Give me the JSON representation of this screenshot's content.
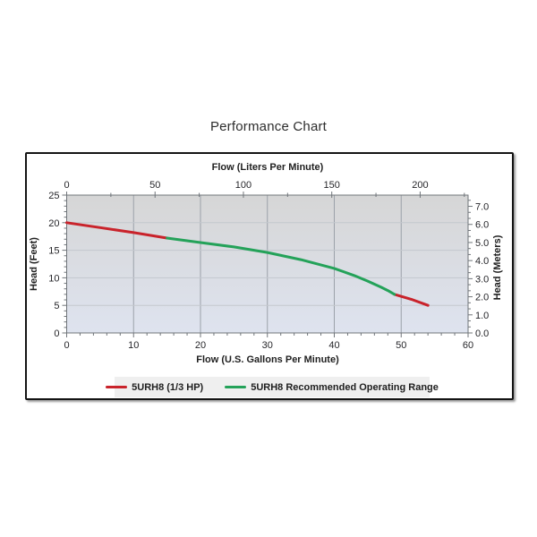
{
  "chart_data": {
    "type": "line",
    "title": "Performance Chart",
    "x_bottom": {
      "label": "Flow (U.S. Gallons Per Minute)",
      "unit": "GPM",
      "range": [
        0,
        60
      ],
      "major_ticks": [
        0,
        10,
        20,
        30,
        40,
        50,
        60
      ],
      "minor_step": 2
    },
    "x_top": {
      "label": "Flow (Liters Per Minute)",
      "unit": "LPM",
      "major_ticks": [
        0,
        50,
        100,
        150,
        200
      ],
      "minor_step": 25,
      "liters_per_gallon": 3.7854
    },
    "y_left": {
      "label": "Head (Feet)",
      "unit": "ft",
      "range": [
        0,
        25
      ],
      "major_ticks": [
        0,
        5,
        10,
        15,
        20,
        25
      ],
      "minor_step": 1
    },
    "y_right": {
      "label": "Head (Meters)",
      "unit": "m",
      "major_ticks": [
        0,
        1,
        2,
        3,
        4,
        5,
        6,
        7
      ],
      "minor_divisions_per_meter": 3,
      "feet_per_meter": 3.2808
    },
    "grid": {
      "vertical_gpm": [
        10,
        20,
        30,
        40,
        50
      ],
      "horizontal_feet": [
        5,
        10,
        15,
        20
      ],
      "v_color": "#9ba1a9",
      "h_color": "#c3c7ce"
    },
    "background": {
      "top": "#d6d6d6",
      "bottom": "#dee3ef"
    },
    "spine_color": "#70757a",
    "series": [
      {
        "name": "5URH8 (1/3 HP)",
        "color": "#c9232b",
        "width": 3,
        "segments": [
          [
            [
              0,
              20
            ],
            [
              5,
              19.1
            ],
            [
              10,
              18.2
            ],
            [
              15,
              17.2
            ]
          ],
          [
            [
              49,
              7.0
            ],
            [
              51.5,
              6.1
            ],
            [
              54,
              5.0
            ]
          ]
        ]
      },
      {
        "name": "5URH8 Recommended Operating Range",
        "color": "#24a259",
        "width": 3,
        "segments": [
          [
            [
              15,
              17.2
            ],
            [
              20,
              16.4
            ],
            [
              25,
              15.6
            ],
            [
              30,
              14.6
            ],
            [
              35,
              13.3
            ],
            [
              40,
              11.7
            ],
            [
              43,
              10.4
            ],
            [
              45,
              9.4
            ],
            [
              47,
              8.3
            ],
            [
              48,
              7.7
            ],
            [
              49,
              7.0
            ]
          ]
        ]
      }
    ],
    "legend_position": "bottom"
  }
}
